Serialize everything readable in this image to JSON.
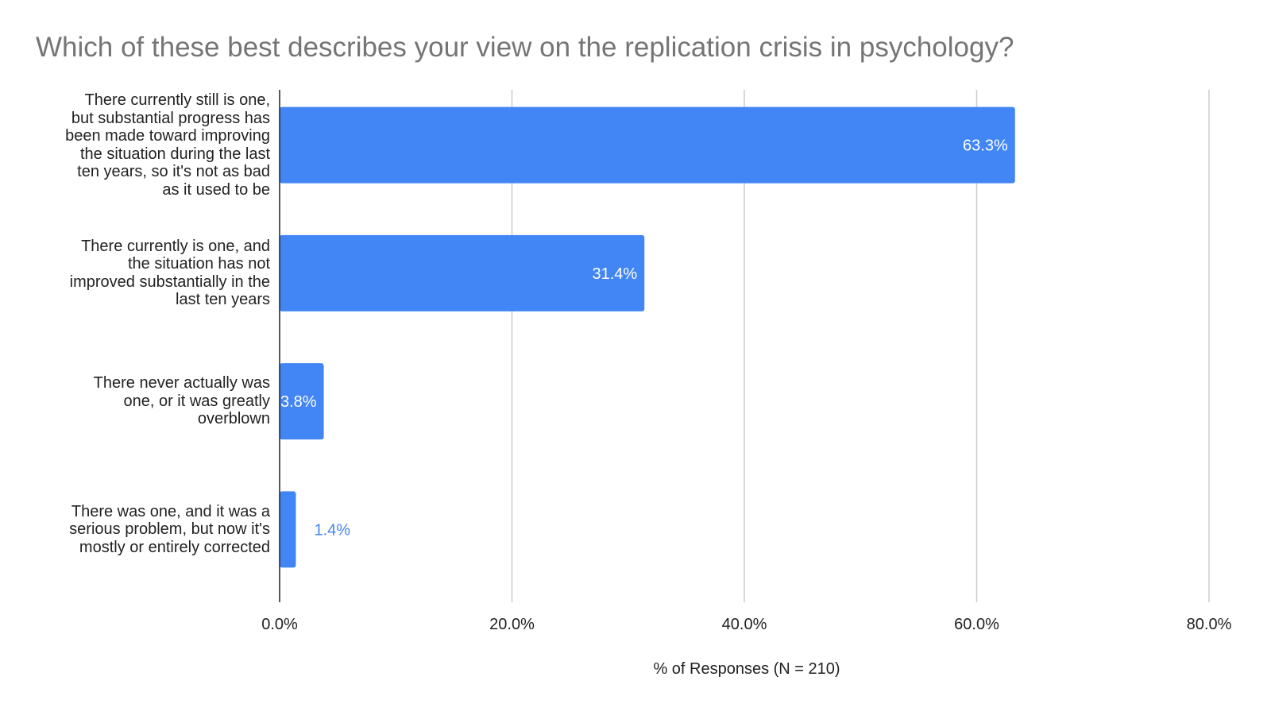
{
  "chart_data": {
    "type": "bar",
    "orientation": "horizontal",
    "title": "Which of these best describes your view on the replication crisis in psychology?",
    "xlabel": "% of Responses (N = 210)",
    "ylabel": "",
    "xlim": [
      0,
      80
    ],
    "xticks": [
      0,
      20,
      40,
      60,
      80
    ],
    "xtick_labels": [
      "0.0%",
      "20.0%",
      "40.0%",
      "60.0%",
      "80.0%"
    ],
    "grid": "vertical",
    "bar_color": "#4285f4",
    "categories": [
      {
        "lines": [
          "There currently still is one,",
          "but substantial progress has",
          "been made toward improving",
          "the situation during the last",
          "ten years, so it's not as bad",
          "as it used to be"
        ]
      },
      {
        "lines": [
          "There currently is one, and",
          "the situation has not",
          "improved substantially in the",
          "last ten years"
        ]
      },
      {
        "lines": [
          "There never actually was",
          "one, or it was greatly",
          "overblown"
        ]
      },
      {
        "lines": [
          "There was one, and it was a",
          "serious problem, but now it's",
          "mostly or entirely corrected"
        ]
      }
    ],
    "values": [
      63.3,
      31.4,
      3.8,
      1.4
    ],
    "data_labels": [
      "63.3%",
      "31.4%",
      "3.8%",
      "1.4%"
    ]
  }
}
